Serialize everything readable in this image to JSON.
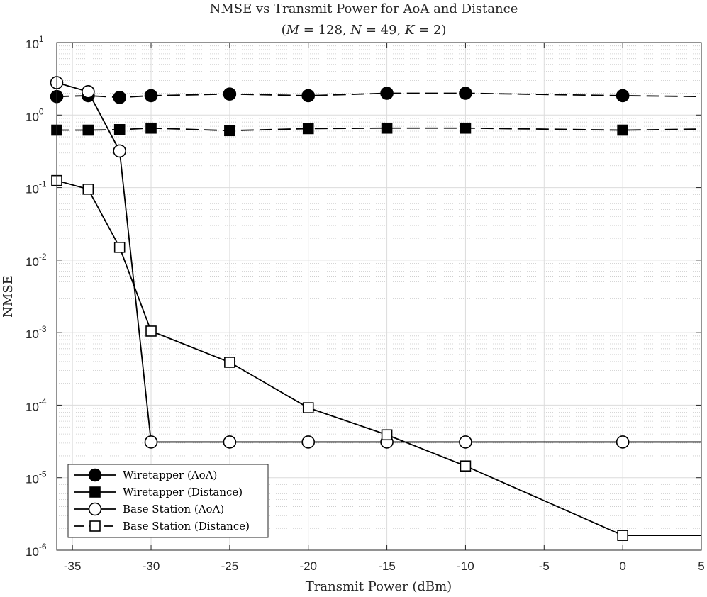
{
  "chart_data": {
    "type": "line",
    "title": "NMSE vs Transmit Power for AoA and Distance",
    "subtitle": "(M = 128, N = 49, K = 2)",
    "subtitle_parts": [
      "(",
      "M",
      " = 128, ",
      "N",
      " = 49, ",
      "K",
      " = 2)"
    ],
    "xlabel": "Transmit Power (dBm)",
    "ylabel": "NMSE",
    "xlim": [
      -36,
      5
    ],
    "ylim": [
      1e-06,
      10
    ],
    "yscale": "log",
    "grid": true,
    "minor_grid": true,
    "legend_position": "bottom-left",
    "x_ticks": [
      -35,
      -30,
      -25,
      -20,
      -15,
      -10,
      -5,
      0,
      5
    ],
    "x_tick_labels": [
      "-35",
      "-30",
      "-25",
      "-20",
      "-15",
      "-10",
      "-5",
      "0",
      "5"
    ],
    "y_ticks": [
      {
        "value": 10,
        "base": "10",
        "exp": "1"
      },
      {
        "value": 1,
        "base": "10",
        "exp": "0"
      },
      {
        "value": 0.1,
        "base": "10",
        "exp": "-1"
      },
      {
        "value": 0.01,
        "base": "10",
        "exp": "-2"
      },
      {
        "value": 0.001,
        "base": "10",
        "exp": "-3"
      },
      {
        "value": 0.0001,
        "base": "10",
        "exp": "-4"
      },
      {
        "value": 1e-05,
        "base": "10",
        "exp": "-5"
      },
      {
        "value": 1e-06,
        "base": "10",
        "exp": "-6"
      }
    ],
    "series": [
      {
        "name": "Wiretapper (AoA)",
        "line": "dashed",
        "marker": "circle",
        "filled": true,
        "x": [
          -36,
          -34,
          -32,
          -30,
          -25,
          -20,
          -15,
          -10,
          0
        ],
        "y": [
          1.8,
          1.85,
          1.75,
          1.85,
          1.95,
          1.85,
          2.0,
          2.0,
          1.85
        ],
        "line_end": {
          "x": 5,
          "y": 1.8
        }
      },
      {
        "name": "Wiretapper (Distance)",
        "line": "dashed",
        "marker": "square",
        "filled": true,
        "x": [
          -36,
          -34,
          -32,
          -30,
          -25,
          -20,
          -15,
          -10,
          0
        ],
        "y": [
          0.62,
          0.62,
          0.63,
          0.66,
          0.61,
          0.65,
          0.66,
          0.66,
          0.62
        ],
        "line_end": {
          "x": 5,
          "y": 0.64
        }
      },
      {
        "name": "Base Station (AoA)",
        "line": "solid",
        "marker": "circle",
        "filled": false,
        "x": [
          -36,
          -34,
          -32,
          -30,
          -25,
          -20,
          -15,
          -10,
          0
        ],
        "y": [
          2.8,
          2.1,
          0.32,
          3.1e-05,
          3.1e-05,
          3.1e-05,
          3.1e-05,
          3.1e-05,
          3.1e-05
        ],
        "line_end": {
          "x": 5,
          "y": 3.1e-05
        }
      },
      {
        "name": "Base Station (Distance)",
        "line": "solid",
        "marker": "square",
        "filled": false,
        "x": [
          -36,
          -34,
          -32,
          -30,
          -25,
          -20,
          -15,
          -10,
          0
        ],
        "y": [
          0.125,
          0.095,
          0.015,
          0.00105,
          0.00039,
          9.2e-05,
          3.9e-05,
          1.45e-05,
          1.6e-06
        ],
        "line_end": {
          "x": 5,
          "y": 1.6e-06
        }
      }
    ],
    "legend": [
      {
        "label": "Wiretapper (AoA)",
        "line": "solid",
        "marker": "circle",
        "filled": true
      },
      {
        "label": "Wiretapper (Distance)",
        "line": "solid",
        "marker": "square",
        "filled": true
      },
      {
        "label": "Base Station (AoA)",
        "line": "solid",
        "marker": "circle",
        "filled": false
      },
      {
        "label": "Base Station (Distance)",
        "line": "dashed",
        "marker": "square",
        "filled": false
      }
    ],
    "colors": {
      "axis": "#262626",
      "major_grid": "#dcdcdc",
      "minor_grid": "#c8c8c8",
      "line": "#000000",
      "background": "#ffffff"
    }
  }
}
